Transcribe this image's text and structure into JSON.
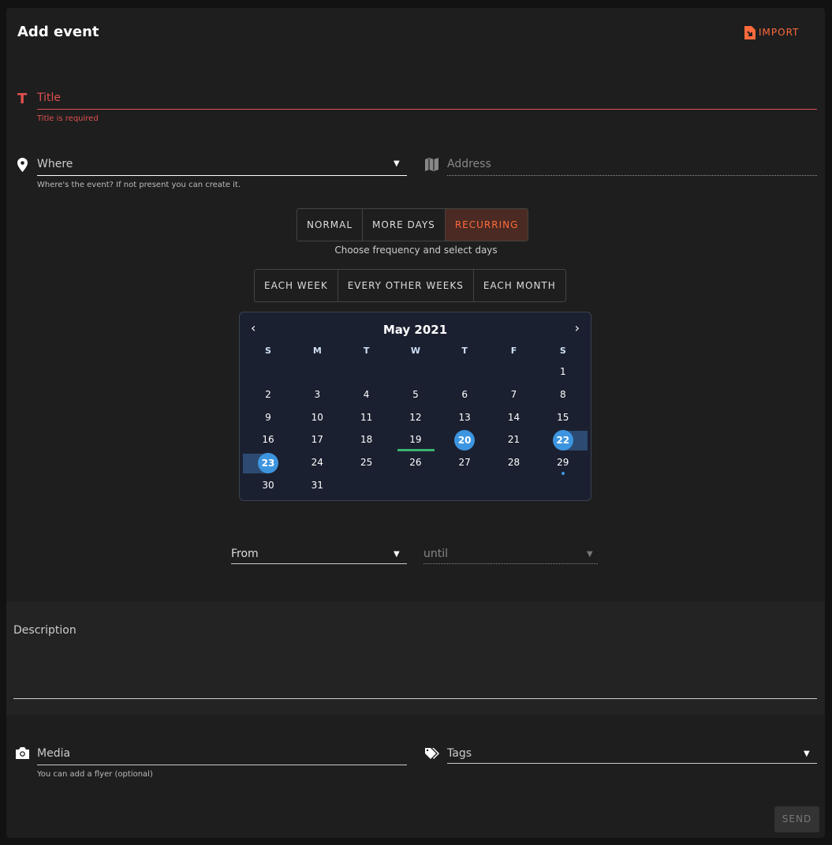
{
  "header": {
    "title": "Add event",
    "import_label": "IMPORT"
  },
  "title_field": {
    "label": "Title",
    "error": "Title is required"
  },
  "where_field": {
    "label": "Where",
    "hint": "Where's the event? If not present you can create it."
  },
  "address_field": {
    "placeholder": "Address"
  },
  "mode_tabs": [
    {
      "label": "NORMAL"
    },
    {
      "label": "MORE DAYS"
    },
    {
      "label": "RECURRING",
      "active": true
    }
  ],
  "mode_hint": "Choose frequency and select days",
  "frequency_tabs": [
    {
      "label": "EACH WEEK"
    },
    {
      "label": "EVERY OTHER WEEKS"
    },
    {
      "label": "EACH MONTH"
    }
  ],
  "calendar": {
    "month": "May 2021",
    "weekdays": [
      "S",
      "M",
      "T",
      "W",
      "T",
      "F",
      "S"
    ],
    "first_weekday": 6,
    "days": 31,
    "selected": [
      20,
      22,
      23
    ],
    "today": 19,
    "range_highlight": [
      22,
      23
    ],
    "dotted": [
      29
    ]
  },
  "from_field": {
    "label": "From"
  },
  "until_field": {
    "label": "until"
  },
  "description": {
    "label": "Description"
  },
  "media_field": {
    "label": "Media",
    "hint": "You can add a flyer (optional)"
  },
  "tags_field": {
    "label": "Tags"
  },
  "send_label": "SEND",
  "colors": {
    "accent": "#ff6a3d",
    "error": "#e05050",
    "selected": "#3d95e0",
    "today": "#3cb371"
  }
}
